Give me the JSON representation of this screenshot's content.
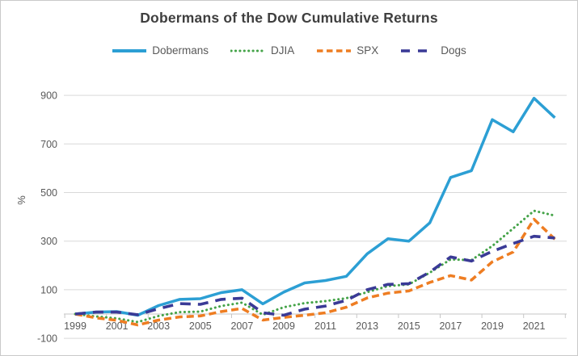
{
  "chart_data": {
    "type": "line",
    "title": "Dobermans of the Dow Cumulative Returns",
    "ylabel": "%",
    "xlabel": "",
    "grid": "horizontal",
    "legend_position": "top",
    "ylim": [
      -100,
      900
    ],
    "yticks": [
      -100,
      100,
      300,
      500,
      700,
      900
    ],
    "xtick_labels": [
      1999,
      2001,
      2003,
      2005,
      2007,
      2009,
      2011,
      2013,
      2015,
      2017,
      2019,
      2021
    ],
    "x": [
      1999,
      2000,
      2001,
      2002,
      2003,
      2004,
      2005,
      2006,
      2007,
      2008,
      2009,
      2010,
      2011,
      2012,
      2013,
      2014,
      2015,
      2016,
      2017,
      2018,
      2019,
      2020,
      2021,
      2022
    ],
    "series": [
      {
        "name": "Dobermans",
        "color": "#2C9FD4",
        "dash": "solid",
        "width": 3.5,
        "values": [
          0,
          8,
          10,
          -5,
          35,
          60,
          63,
          88,
          100,
          42,
          90,
          128,
          138,
          155,
          248,
          310,
          300,
          375,
          562,
          590,
          800,
          750,
          888,
          808
        ]
      },
      {
        "name": "DJIA",
        "color": "#44A348",
        "dash": "dotted",
        "width": 3,
        "values": [
          0,
          -10,
          -18,
          -33,
          -8,
          8,
          10,
          33,
          47,
          -3,
          28,
          45,
          53,
          65,
          90,
          115,
          122,
          170,
          225,
          222,
          280,
          352,
          425,
          405
        ]
      },
      {
        "name": "SPX",
        "color": "#EE7D22",
        "dash": "dashed",
        "width": 3.5,
        "values": [
          0,
          -16,
          -26,
          -45,
          -25,
          -12,
          -8,
          10,
          23,
          -25,
          -14,
          -5,
          5,
          28,
          66,
          86,
          95,
          130,
          158,
          140,
          215,
          255,
          390,
          308
        ]
      },
      {
        "name": "Dogs",
        "color": "#3A3A96",
        "dash": "longdash",
        "width": 3.6,
        "values": [
          0,
          8,
          8,
          -3,
          22,
          43,
          40,
          60,
          65,
          5,
          -5,
          20,
          33,
          56,
          100,
          122,
          125,
          172,
          235,
          218,
          258,
          290,
          320,
          313
        ]
      }
    ]
  }
}
